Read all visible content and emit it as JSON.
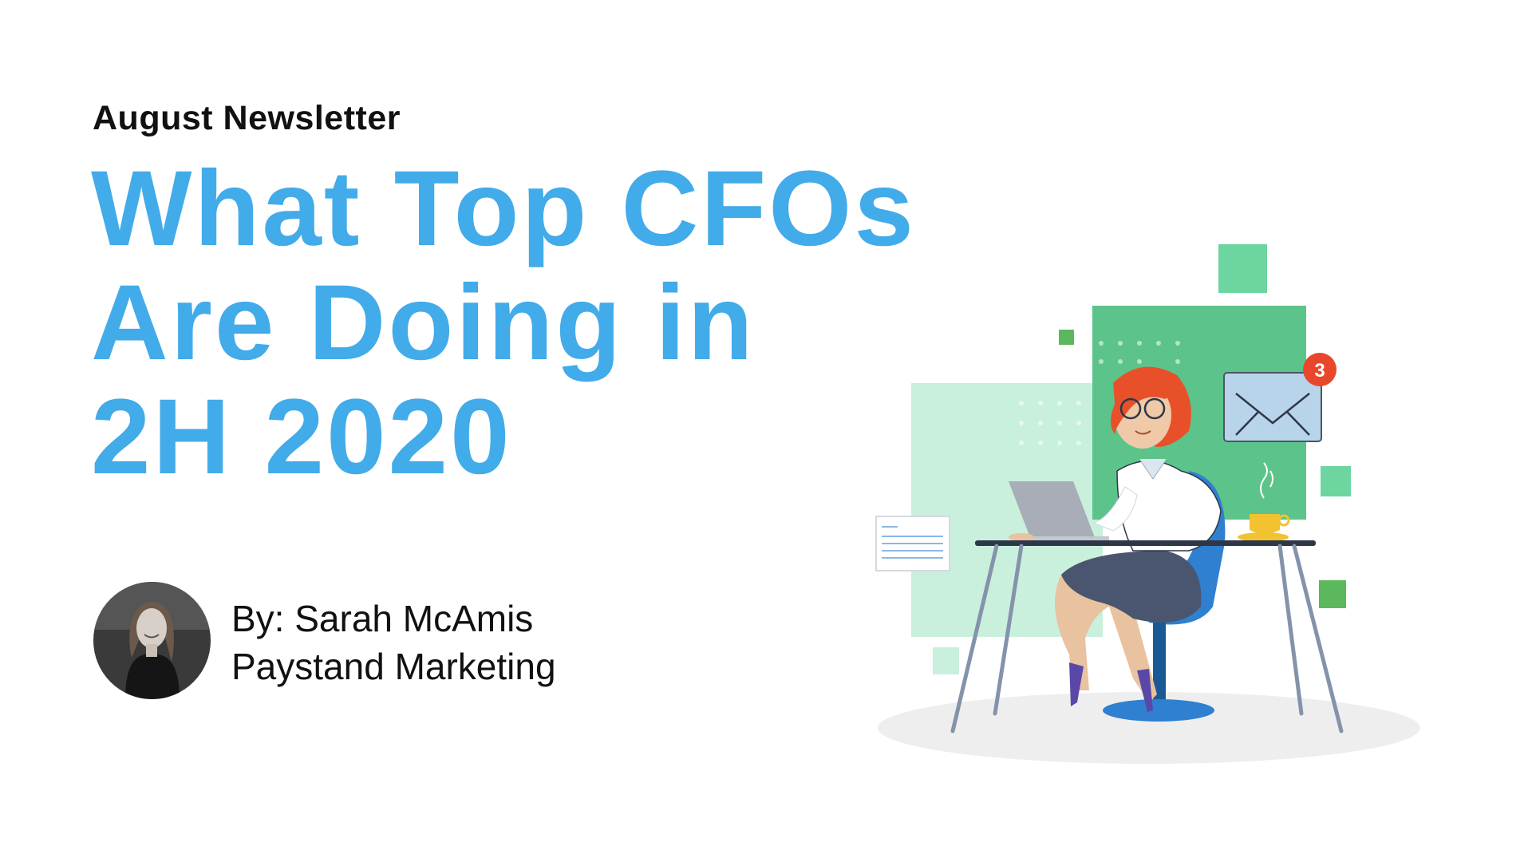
{
  "header": {
    "kicker": "August Newsletter"
  },
  "title": {
    "lines": [
      "What Top CFOs",
      "Are Doing in",
      "2H 2020"
    ]
  },
  "author": {
    "byline": "By: Sarah McAmis",
    "organization": "Paystand Marketing"
  },
  "illustration": {
    "notification_count": "3"
  },
  "colors": {
    "title": "#42abe9",
    "green": "#5cc48a",
    "mint": "#c9f0dc",
    "badge": "#e8472c"
  }
}
